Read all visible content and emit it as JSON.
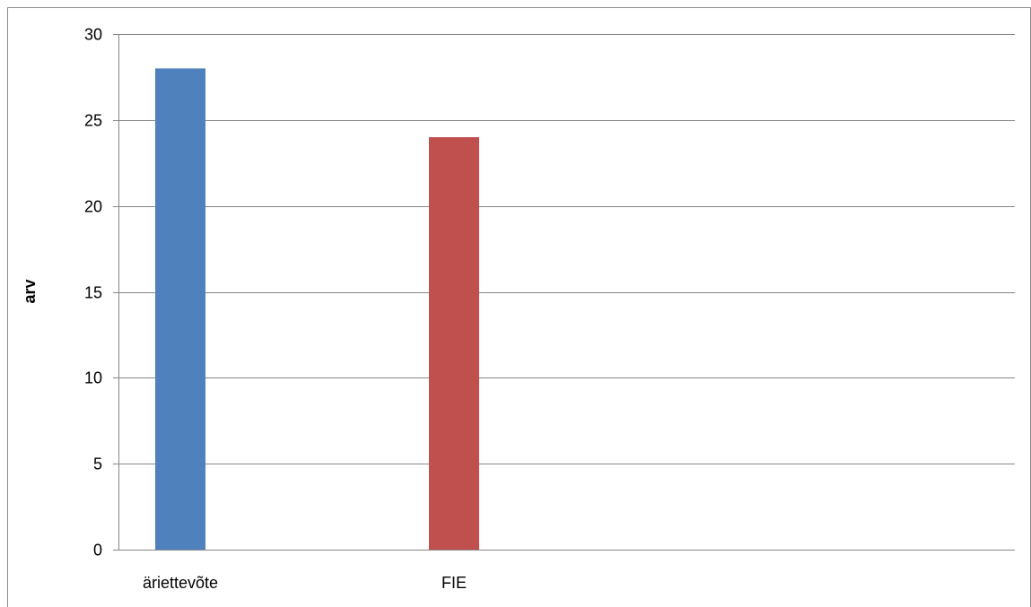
{
  "chart_data": {
    "type": "bar",
    "title": "",
    "xlabel": "",
    "ylabel": "arv",
    "ylim": [
      0,
      30
    ],
    "yticks": [
      0,
      5,
      10,
      15,
      20,
      25,
      30
    ],
    "categories": [
      "äriettevõte",
      "FIE"
    ],
    "values": [
      28,
      24
    ],
    "colors": [
      "#4F81BD",
      "#C0504D"
    ],
    "grid": true,
    "legend": "none"
  }
}
